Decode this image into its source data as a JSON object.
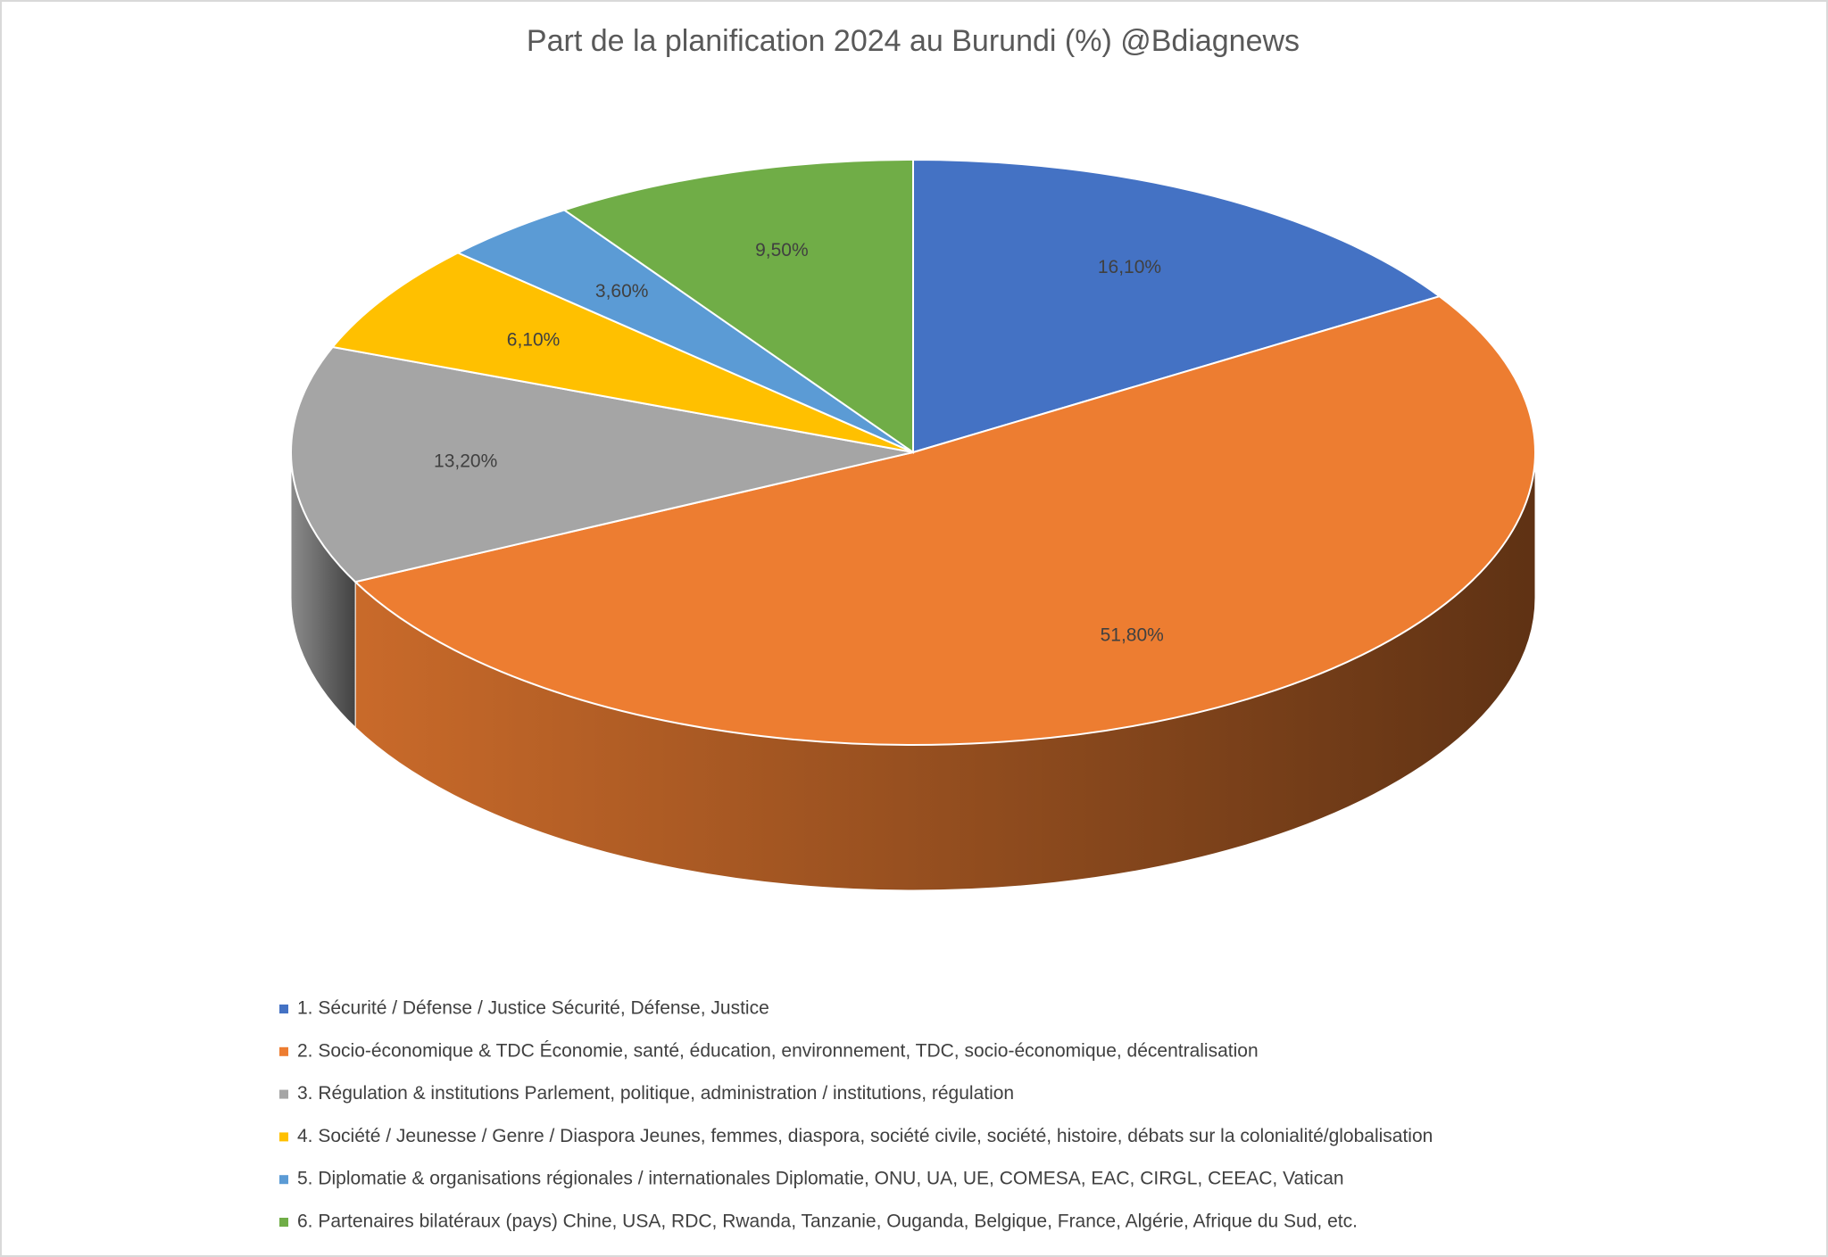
{
  "chart_data": {
    "type": "pie3d",
    "title": "Part de la planification 2024 au Burundi (%)  @Bdiagnews",
    "series": [
      {
        "name": "1. Sécurité / Défense / Justice Sécurité, Défense, Justice",
        "color": "#4472c4",
        "values": [
          16.1
        ],
        "value_labels": [
          "16,10%"
        ]
      },
      {
        "name": "2. Socio-économique & TDC Économie, santé, éducation, environnement, TDC, socio-économique, décentralisation",
        "color": "#ed7d31",
        "values": [
          51.8
        ],
        "value_labels": [
          "51,80%"
        ]
      },
      {
        "name": "3. Régulation & institutions Parlement, politique, administration / institutions, régulation",
        "color": "#a5a5a5",
        "values": [
          13.2
        ],
        "value_labels": [
          "13,20%"
        ]
      },
      {
        "name": "4. Société / Jeunesse / Genre / Diaspora Jeunes, femmes, diaspora, société civile, société, histoire, débats sur la colonialité/globalisation",
        "color": "#ffc000",
        "values": [
          6.1
        ],
        "value_labels": [
          "6,10%"
        ]
      },
      {
        "name": "5. Diplomatie & organisations régionales / internationales Diplomatie, ONU, UA, UE, COMESA, EAC, CIRGL, CEEAC, Vatican",
        "color": "#5b9bd5",
        "values": [
          3.6
        ],
        "value_labels": [
          "3,60%"
        ]
      },
      {
        "name": "6. Partenaires bilatéraux (pays) Chine, USA, RDC, Rwanda, Tanzanie, Ouganda, Belgique, France, Algérie, Afrique du Sud, etc.",
        "color": "#70ad47",
        "values": [
          9.5
        ],
        "value_labels": [
          "9,50%"
        ]
      }
    ],
    "legend": "bottom"
  }
}
